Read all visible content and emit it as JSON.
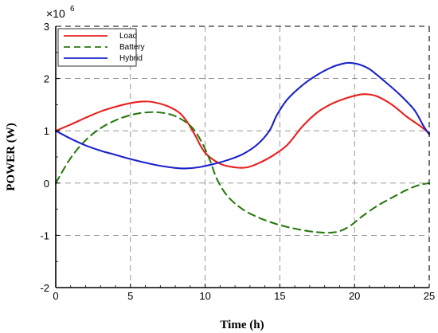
{
  "chart_data": {
    "type": "line",
    "title": "",
    "xlabel": "Time (h)",
    "ylabel": "POWER (W)",
    "y_multiplier": "×10",
    "y_exponent": "6",
    "xlim": [
      0,
      25
    ],
    "ylim": [
      -2,
      3
    ],
    "xticks": [
      0,
      5,
      10,
      15,
      20,
      25
    ],
    "yticks": [
      -2,
      -1,
      0,
      1,
      2,
      3
    ],
    "grid": true,
    "grid_style": "dashed",
    "legend_position": "top-left",
    "series": [
      {
        "name": "Load",
        "color": "#e8201e",
        "dash": "solid",
        "x": [
          0,
          1,
          2,
          3,
          4,
          5,
          5.8,
          6.5,
          7.5,
          8.3,
          8.8,
          9.3,
          10,
          11,
          12,
          12.8,
          13.5,
          14.5,
          15.5,
          16.5,
          17.5,
          18.5,
          19.5,
          20.3,
          20.8,
          21.5,
          22.5,
          23.5,
          24.5,
          25
        ],
        "values": [
          1.0,
          1.12,
          1.25,
          1.37,
          1.46,
          1.53,
          1.56,
          1.55,
          1.47,
          1.34,
          1.17,
          0.93,
          0.58,
          0.37,
          0.3,
          0.3,
          0.37,
          0.52,
          0.73,
          1.08,
          1.35,
          1.52,
          1.63,
          1.69,
          1.7,
          1.66,
          1.5,
          1.27,
          1.07,
          0.95
        ]
      },
      {
        "name": "Battery",
        "color": "#2a7a10",
        "dash": "dashed",
        "x": [
          0,
          1,
          2,
          3,
          4,
          5,
          6,
          7,
          8,
          9,
          9.7,
          10.3,
          10.8,
          11.5,
          12.5,
          13.5,
          14.5,
          15.5,
          16.5,
          17.5,
          18.3,
          19,
          19.7,
          20.5,
          21.5,
          22.5,
          23.5,
          24.3,
          25
        ],
        "values": [
          0.0,
          0.48,
          0.82,
          1.05,
          1.2,
          1.3,
          1.35,
          1.35,
          1.28,
          1.1,
          0.82,
          0.45,
          0.07,
          -0.25,
          -0.5,
          -0.65,
          -0.76,
          -0.84,
          -0.9,
          -0.94,
          -0.95,
          -0.92,
          -0.82,
          -0.64,
          -0.44,
          -0.28,
          -0.13,
          -0.04,
          0.0
        ]
      },
      {
        "name": "Hybrid",
        "color": "#1a22c8",
        "dash": "solid",
        "x": [
          0,
          1,
          2,
          3,
          4,
          5,
          6,
          7,
          8,
          8.7,
          9.5,
          10.5,
          11.5,
          12.5,
          13.5,
          14.3,
          14.8,
          15.5,
          16.5,
          17.5,
          18.5,
          19.3,
          19.7,
          20.3,
          21,
          22,
          23,
          24,
          24.6,
          25
        ],
        "values": [
          1.0,
          0.85,
          0.72,
          0.62,
          0.54,
          0.46,
          0.39,
          0.33,
          0.29,
          0.28,
          0.3,
          0.36,
          0.44,
          0.55,
          0.74,
          1.0,
          1.3,
          1.6,
          1.87,
          2.07,
          2.22,
          2.29,
          2.3,
          2.27,
          2.18,
          1.95,
          1.7,
          1.4,
          1.1,
          0.93
        ]
      }
    ]
  }
}
